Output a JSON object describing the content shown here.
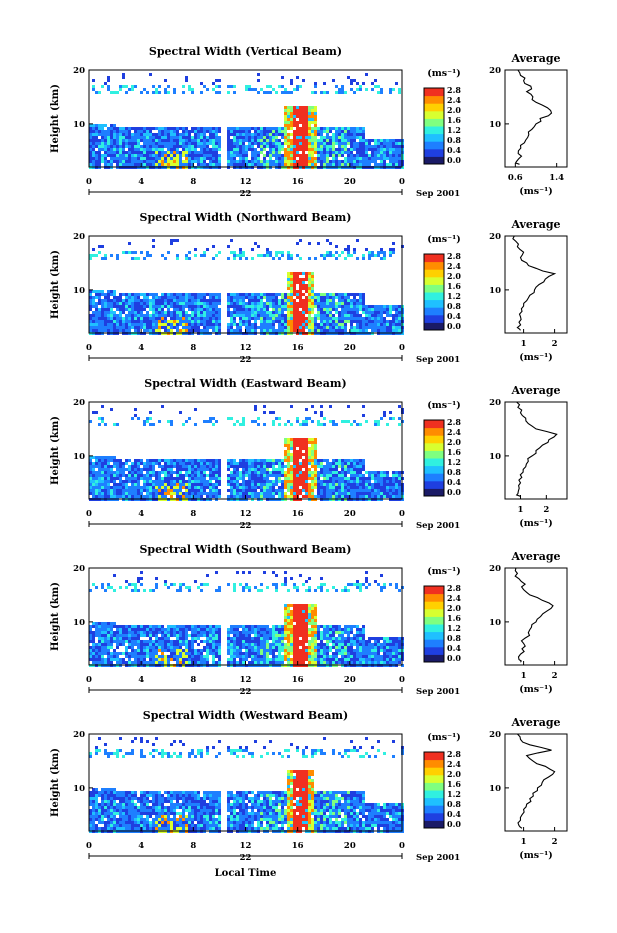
{
  "chart_data": [
    {
      "type": "heatmap",
      "title": "Spectral Width (Vertical Beam)",
      "ylabel": "Height (km)",
      "ylim": [
        2,
        20
      ],
      "yticks": [
        "10",
        "20"
      ],
      "xticks": [
        "0",
        "4",
        "8",
        "12",
        "16",
        "20",
        "0"
      ],
      "xlim": [
        0,
        24
      ],
      "date_label": "22",
      "month_label": "Sep 2001",
      "colorbar": {
        "unit": "(ms⁻¹)",
        "labels": [
          "2.8",
          "2.4",
          "2.0",
          "1.6",
          "1.2",
          "0.8",
          "0.4",
          "0.0"
        ],
        "colors": [
          "#1a1a66",
          "#1f3fe0",
          "#1e7fff",
          "#1fc0ff",
          "#30f0e0",
          "#7fff80",
          "#d8ff30",
          "#ffd000",
          "#ff8c00",
          "#f03020"
        ]
      },
      "data_gap_hours": [
        10,
        10.4
      ],
      "turbulence_peak_hours": [
        14.8,
        17.4
      ],
      "average_profile": {
        "title": "Average",
        "xlabel": "(ms⁻¹)",
        "xticks": [
          "0.6",
          "1.4"
        ],
        "xlim": [
          0.4,
          1.6
        ],
        "yticks": [
          "10",
          "20"
        ],
        "height_km": [
          2.5,
          3,
          4,
          5,
          6,
          7,
          8,
          9,
          10,
          11,
          12,
          13,
          14,
          15,
          16,
          17,
          18,
          19,
          20
        ],
        "values": [
          0.68,
          0.62,
          0.72,
          0.66,
          0.7,
          0.8,
          0.86,
          0.92,
          1.0,
          1.08,
          1.3,
          1.22,
          1.0,
          0.94,
          0.82,
          0.9,
          0.76,
          0.7,
          0.65
        ]
      }
    },
    {
      "type": "heatmap",
      "title": "Spectral Width (Northward Beam)",
      "ylabel": "Height (km)",
      "ylim": [
        2,
        20
      ],
      "yticks": [
        "10",
        "20"
      ],
      "xticks": [
        "0",
        "4",
        "8",
        "12",
        "16",
        "20",
        "0"
      ],
      "xlim": [
        0,
        24
      ],
      "date_label": "22",
      "month_label": "Sep 2001",
      "colorbar": {
        "unit": "(ms⁻¹)",
        "labels": [
          "2.8",
          "2.4",
          "2.0",
          "1.6",
          "1.2",
          "0.8",
          "0.4",
          "0.0"
        ],
        "colors": [
          "#1a1a66",
          "#1f3fe0",
          "#1e7fff",
          "#1fc0ff",
          "#30f0e0",
          "#7fff80",
          "#d8ff30",
          "#ffd000",
          "#ff8c00",
          "#f03020"
        ]
      },
      "data_gap_hours": [
        10,
        10.4
      ],
      "turbulence_peak_hours": [
        15,
        17.2
      ],
      "average_profile": {
        "title": "Average",
        "xlabel": "(ms⁻¹)",
        "xticks": [
          "1",
          "2"
        ],
        "xlim": [
          0.4,
          2.4
        ],
        "yticks": [
          "10",
          "20"
        ],
        "height_km": [
          2.5,
          3,
          4,
          5,
          6,
          7,
          8,
          9,
          10,
          11,
          12,
          13,
          14,
          15,
          16,
          17,
          18,
          19,
          20
        ],
        "values": [
          0.9,
          0.8,
          0.85,
          0.9,
          0.95,
          1.0,
          1.1,
          1.2,
          1.35,
          1.5,
          1.7,
          2.0,
          1.4,
          1.1,
          0.9,
          1.0,
          0.8,
          0.75,
          0.7
        ]
      }
    },
    {
      "type": "heatmap",
      "title": "Spectral Width (Eastward Beam)",
      "ylabel": "Height (km)",
      "ylim": [
        2,
        20
      ],
      "yticks": [
        "10",
        "20"
      ],
      "xticks": [
        "0",
        "4",
        "8",
        "12",
        "16",
        "20",
        "0"
      ],
      "xlim": [
        0,
        24
      ],
      "date_label": "22",
      "month_label": "Sep 2001",
      "colorbar": {
        "unit": "(ms⁻¹)",
        "labels": [
          "2.8",
          "2.4",
          "2.0",
          "1.6",
          "1.2",
          "0.8",
          "0.4",
          "0.0"
        ],
        "colors": [
          "#1a1a66",
          "#1f3fe0",
          "#1e7fff",
          "#1fc0ff",
          "#30f0e0",
          "#7fff80",
          "#d8ff30",
          "#ffd000",
          "#ff8c00",
          "#f03020"
        ]
      },
      "data_gap_hours": [
        10,
        10.4
      ],
      "turbulence_peak_hours": [
        14.8,
        17.4
      ],
      "average_profile": {
        "title": "Average",
        "xlabel": "(ms⁻¹)",
        "xticks": [
          "1",
          "2"
        ],
        "xlim": [
          0.4,
          2.8
        ],
        "yticks": [
          "10",
          "20"
        ],
        "height_km": [
          2.5,
          3,
          4,
          5,
          6,
          7,
          8,
          9,
          10,
          11,
          12,
          13,
          14,
          15,
          16,
          17,
          18,
          19,
          20
        ],
        "values": [
          1.0,
          0.9,
          0.95,
          1.0,
          1.05,
          1.1,
          1.2,
          1.3,
          1.45,
          1.6,
          1.85,
          2.1,
          2.4,
          1.6,
          1.3,
          1.2,
          1.0,
          0.9,
          0.85
        ]
      }
    },
    {
      "type": "heatmap",
      "title": "Spectral Width (Southward Beam)",
      "ylabel": "Height (km)",
      "ylim": [
        2,
        20
      ],
      "yticks": [
        "10",
        "20"
      ],
      "xticks": [
        "0",
        "4",
        "8",
        "12",
        "16",
        "20",
        "0"
      ],
      "xlim": [
        0,
        24
      ],
      "date_label": "22",
      "month_label": "Sep 2001",
      "colorbar": {
        "unit": "(ms⁻¹)",
        "labels": [
          "2.8",
          "2.4",
          "2.0",
          "1.6",
          "1.2",
          "0.8",
          "0.4",
          "0.0"
        ],
        "colors": [
          "#1a1a66",
          "#1f3fe0",
          "#1e7fff",
          "#1fc0ff",
          "#30f0e0",
          "#7fff80",
          "#d8ff30",
          "#ffd000",
          "#ff8c00",
          "#f03020"
        ]
      },
      "data_gap_hours": [
        10,
        10.4
      ],
      "turbulence_peak_hours": [
        14.9,
        17.3
      ],
      "average_profile": {
        "title": "Average",
        "xlabel": "(ms⁻¹)",
        "xticks": [
          "1",
          "2"
        ],
        "xlim": [
          0.4,
          2.4
        ],
        "yticks": [
          "10",
          "20"
        ],
        "height_km": [
          2.5,
          3,
          4,
          5,
          6,
          7,
          8,
          9,
          10,
          11,
          12,
          13,
          14,
          15,
          16,
          17,
          18,
          19,
          20
        ],
        "values": [
          0.9,
          0.85,
          0.9,
          0.95,
          1.0,
          1.05,
          1.15,
          1.25,
          1.4,
          1.55,
          1.75,
          1.95,
          1.6,
          1.2,
          1.0,
          1.05,
          0.85,
          0.8,
          0.75
        ]
      }
    },
    {
      "type": "heatmap",
      "title": "Spectral Width (Westward Beam)",
      "ylabel": "Height (km)",
      "ylim": [
        2,
        20
      ],
      "yticks": [
        "10",
        "20"
      ],
      "xticks": [
        "0",
        "4",
        "8",
        "12",
        "16",
        "20",
        "0"
      ],
      "xlim": [
        0,
        24
      ],
      "date_label": "22",
      "month_label": "Sep 2001",
      "xlabel": "Local Time",
      "colorbar": {
        "unit": "(ms⁻¹)",
        "labels": [
          "2.8",
          "2.4",
          "2.0",
          "1.6",
          "1.2",
          "0.8",
          "0.4",
          "0.0"
        ],
        "colors": [
          "#1a1a66",
          "#1f3fe0",
          "#1e7fff",
          "#1fc0ff",
          "#30f0e0",
          "#7fff80",
          "#d8ff30",
          "#ffd000",
          "#ff8c00",
          "#f03020"
        ]
      },
      "data_gap_hours": [
        10,
        10.4
      ],
      "turbulence_peak_hours": [
        15,
        17.2
      ],
      "average_profile": {
        "title": "Average",
        "xlabel": "(ms⁻¹)",
        "xticks": [
          "1",
          "2"
        ],
        "xlim": [
          0.4,
          2.4
        ],
        "yticks": [
          "10",
          "20"
        ],
        "height_km": [
          2.5,
          3,
          4,
          5,
          6,
          7,
          8,
          9,
          10,
          11,
          12,
          13,
          14,
          15,
          16,
          17,
          18,
          19,
          20
        ],
        "values": [
          0.95,
          0.85,
          0.9,
          0.95,
          1.0,
          1.1,
          1.2,
          1.3,
          1.45,
          1.6,
          1.8,
          2.0,
          1.7,
          1.3,
          1.1,
          1.9,
          1.2,
          0.9,
          0.8
        ]
      }
    }
  ]
}
